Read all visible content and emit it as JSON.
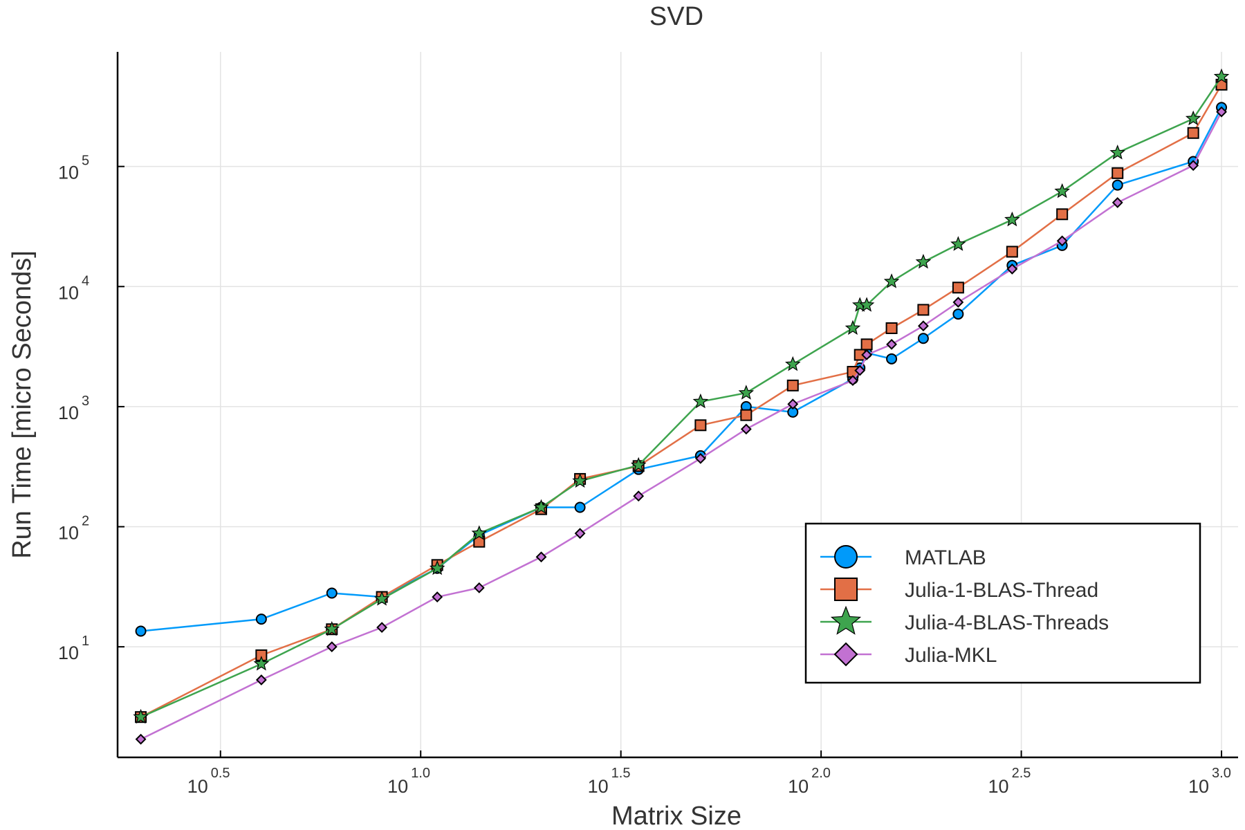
{
  "chart_data": {
    "type": "line",
    "title": "SVD",
    "xlabel": "Matrix Size",
    "ylabel": "Run Time  [micro Seconds]",
    "x_scale": "log10",
    "y_scale": "log10",
    "xlim": [
      1.75,
      1100
    ],
    "ylim": [
      1.2,
      900000
    ],
    "grid": true,
    "legend_position": "bottom-right",
    "x_ticks": [
      {
        "value": 3.1623,
        "base": "10",
        "exp": "0.5"
      },
      {
        "value": 10,
        "base": "10",
        "exp": "1.0"
      },
      {
        "value": 31.623,
        "base": "10",
        "exp": "1.5"
      },
      {
        "value": 100,
        "base": "10",
        "exp": "2.0"
      },
      {
        "value": 316.23,
        "base": "10",
        "exp": "2.5"
      },
      {
        "value": 1000,
        "base": "10",
        "exp": "3.0"
      }
    ],
    "y_ticks": [
      {
        "value": 10,
        "base": "10",
        "exp": "1"
      },
      {
        "value": 100,
        "base": "10",
        "exp": "2"
      },
      {
        "value": 1000,
        "base": "10",
        "exp": "3"
      },
      {
        "value": 10000,
        "base": "10",
        "exp": "4"
      },
      {
        "value": 100000,
        "base": "10",
        "exp": "5"
      }
    ],
    "x": [
      2,
      4,
      6,
      8,
      11,
      14,
      20,
      25,
      35,
      50,
      65,
      85,
      120,
      125,
      130,
      150,
      180,
      220,
      300,
      400,
      550,
      850,
      1000
    ],
    "series": [
      {
        "name": "MATLAB",
        "color": "#009AFA",
        "marker": "circle",
        "values": [
          13.5,
          17,
          28,
          26,
          45,
          85,
          145,
          145,
          300,
          390,
          1000,
          900,
          1700,
          2100,
          2800,
          2500,
          3700,
          5900,
          15000,
          22000,
          70000,
          110000,
          310000
        ]
      },
      {
        "name": "Julia-1-BLAS-Thread",
        "color": "#E26F46",
        "marker": "square",
        "values": [
          2.6,
          8.5,
          14,
          26,
          48,
          75,
          140,
          250,
          320,
          700,
          850,
          1500,
          1950,
          2700,
          3300,
          4500,
          6400,
          9800,
          19500,
          40000,
          88000,
          190000,
          480000
        ]
      },
      {
        "name": "Julia-4-BLAS-Threads",
        "color": "#3EA44E",
        "marker": "star",
        "values": [
          2.6,
          7.2,
          14,
          25,
          45,
          88,
          145,
          240,
          325,
          1100,
          1300,
          2250,
          4500,
          7000,
          7000,
          11000,
          16000,
          22500,
          36000,
          62000,
          130000,
          250000,
          560000
        ]
      },
      {
        "name": "Julia-MKL",
        "color": "#C271D2",
        "marker": "diamond",
        "values": [
          1.7,
          5.3,
          10,
          14.5,
          26,
          31,
          56,
          88,
          180,
          370,
          650,
          1050,
          1650,
          2000,
          2700,
          3300,
          4700,
          7400,
          14000,
          24000,
          50000,
          102000,
          285000
        ]
      }
    ]
  }
}
